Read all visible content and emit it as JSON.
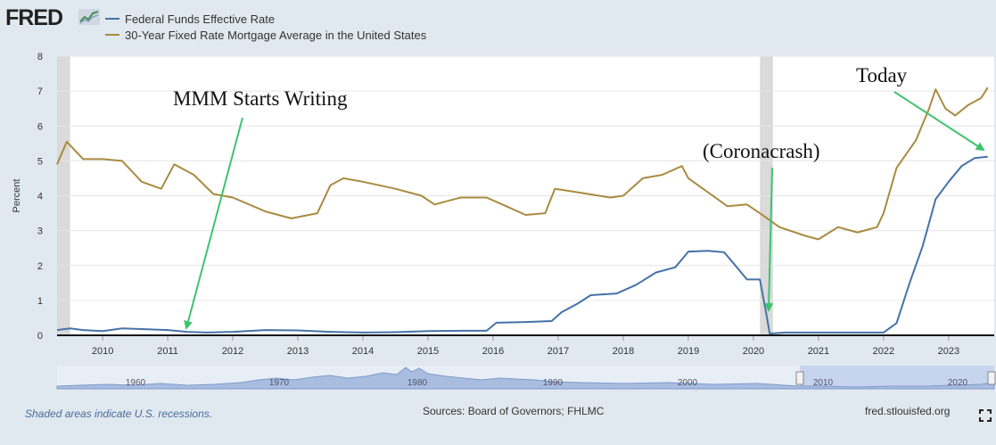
{
  "brand": "FRED",
  "colors": {
    "series1": "#4572a7",
    "series2": "#a98b40",
    "arrow": "#3ec46d",
    "recession": "#dadada",
    "navigator": "#a8bde0"
  },
  "footer": {
    "note": "Shaded areas indicate U.S. recessions.",
    "sources": "Sources: Board of Governors; FHLMC",
    "site": "fred.stlouisfed.org"
  },
  "chart_data": {
    "type": "line",
    "ylabel": "Percent",
    "xlim": [
      2009.3,
      2023.7
    ],
    "ylim": [
      0,
      8
    ],
    "yticks": [
      "0",
      "1",
      "2",
      "3",
      "4",
      "5",
      "6",
      "7",
      "8"
    ],
    "xticks": [
      "2010",
      "2011",
      "2012",
      "2013",
      "2014",
      "2015",
      "2016",
      "2017",
      "2018",
      "2019",
      "2020",
      "2021",
      "2022",
      "2023"
    ],
    "recessions": [
      [
        2009.3,
        2009.5
      ],
      [
        2020.1,
        2020.3
      ]
    ],
    "series": [
      {
        "name": "Federal Funds Effective Rate",
        "x": [
          2009.3,
          2009.5,
          2009.7,
          2010.0,
          2010.3,
          2010.6,
          2011.0,
          2011.3,
          2011.6,
          2012.0,
          2012.5,
          2013.0,
          2013.5,
          2014.0,
          2014.5,
          2015.0,
          2015.5,
          2015.9,
          2016.05,
          2016.5,
          2016.9,
          2017.05,
          2017.3,
          2017.5,
          2017.9,
          2018.2,
          2018.5,
          2018.8,
          2019.0,
          2019.3,
          2019.55,
          2019.7,
          2019.9,
          2020.1,
          2020.2,
          2020.25,
          2020.5,
          2021.0,
          2021.5,
          2022.0,
          2022.2,
          2022.4,
          2022.6,
          2022.8,
          2023.0,
          2023.2,
          2023.4,
          2023.6
        ],
        "values": [
          0.15,
          0.2,
          0.15,
          0.12,
          0.2,
          0.18,
          0.15,
          0.1,
          0.08,
          0.1,
          0.15,
          0.14,
          0.1,
          0.08,
          0.09,
          0.12,
          0.13,
          0.13,
          0.36,
          0.38,
          0.41,
          0.66,
          0.91,
          1.15,
          1.2,
          1.45,
          1.8,
          1.95,
          2.4,
          2.42,
          2.38,
          2.05,
          1.6,
          1.6,
          0.6,
          0.05,
          0.08,
          0.08,
          0.08,
          0.08,
          0.35,
          1.5,
          2.55,
          3.9,
          4.4,
          4.85,
          5.08,
          5.12
        ]
      },
      {
        "name": "30-Year Fixed Rate Mortgage Average in the United States",
        "x": [
          2009.3,
          2009.45,
          2009.7,
          2010.0,
          2010.3,
          2010.6,
          2010.9,
          2011.1,
          2011.4,
          2011.7,
          2012.0,
          2012.5,
          2012.9,
          2013.3,
          2013.5,
          2013.7,
          2014.0,
          2014.5,
          2014.9,
          2015.1,
          2015.5,
          2015.9,
          2016.2,
          2016.5,
          2016.8,
          2016.95,
          2017.3,
          2017.8,
          2018.0,
          2018.3,
          2018.6,
          2018.9,
          2019.0,
          2019.3,
          2019.6,
          2019.9,
          2020.1,
          2020.4,
          2020.8,
          2021.0,
          2021.3,
          2021.6,
          2021.9,
          2022.0,
          2022.2,
          2022.5,
          2022.7,
          2022.8,
          2022.95,
          2023.1,
          2023.3,
          2023.5,
          2023.6
        ],
        "values": [
          4.9,
          5.55,
          5.05,
          5.05,
          5.0,
          4.4,
          4.2,
          4.9,
          4.6,
          4.05,
          3.95,
          3.55,
          3.35,
          3.5,
          4.3,
          4.5,
          4.4,
          4.2,
          4.0,
          3.75,
          3.95,
          3.95,
          3.7,
          3.45,
          3.5,
          4.2,
          4.1,
          3.95,
          4.0,
          4.5,
          4.6,
          4.85,
          4.5,
          4.1,
          3.7,
          3.75,
          3.5,
          3.1,
          2.85,
          2.75,
          3.1,
          2.95,
          3.1,
          3.5,
          4.8,
          5.6,
          6.5,
          7.05,
          6.5,
          6.3,
          6.6,
          6.8,
          7.1
        ]
      }
    ],
    "annotations": [
      {
        "text": "MMM Starts Writing"
      },
      {
        "text": "(Coronacrash)"
      },
      {
        "text": "Today"
      }
    ],
    "navigator": {
      "ticks": [
        "1960",
        "1970",
        "1980",
        "1990",
        "2000",
        "2010",
        "2020"
      ]
    }
  }
}
